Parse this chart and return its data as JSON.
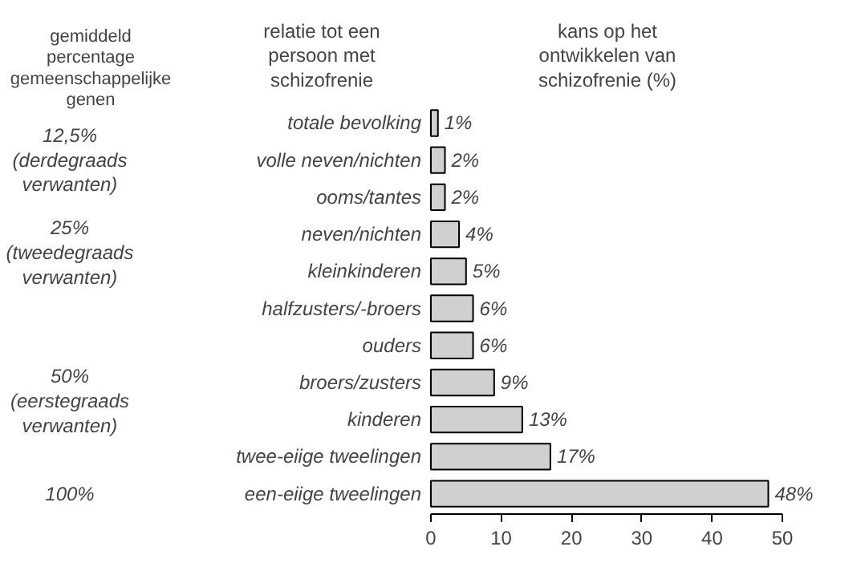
{
  "chart_data": {
    "type": "bar",
    "orientation": "horizontal",
    "xlabel": "kans op het\nontwikkelen van\nschizofrenie (%)",
    "ylabel": "relatie tot een\npersoon met\nschizofrenie",
    "categories": [
      "totale bevolking",
      "volle neven/nichten",
      "ooms/tantes",
      "neven/nichten",
      "kleinkinderen",
      "halfzusters/-broers",
      "ouders",
      "broers/zusters",
      "kinderen",
      "twee-eiige tweelingen",
      "een-eiige tweelingen"
    ],
    "values": [
      1,
      2,
      2,
      4,
      5,
      6,
      6,
      9,
      13,
      17,
      48
    ],
    "value_labels": [
      "1%",
      "2%",
      "2%",
      "4%",
      "5%",
      "6%",
      "6%",
      "9%",
      "13%",
      "17%",
      "48%"
    ],
    "color": "#d0d0d0",
    "xlim": [
      0,
      50
    ],
    "xticks": [
      0,
      10,
      20,
      30,
      40,
      50
    ],
    "grid": false,
    "annotations": [
      "gemiddeld\npercentage\ngemeenschappelijke\ngenen",
      "12,5%\n(derdegraads\nverwanten)",
      "25%\n(tweedegraads\nverwanten)",
      "50%\n(eerstegraads\nverwanten)",
      "100%"
    ]
  }
}
